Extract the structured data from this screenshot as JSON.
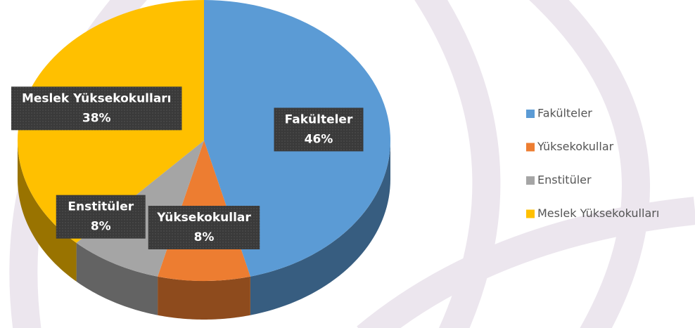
{
  "chart_data": {
    "type": "pie",
    "categories": [
      "Fakülteler",
      "Yüksekokullar",
      "Enstitüler",
      "Meslek Yüksekokulları"
    ],
    "values": [
      46,
      8,
      8,
      38
    ],
    "value_labels": [
      "46%",
      "8%",
      "8%",
      "38%"
    ],
    "colors": [
      "#5b9bd5",
      "#ed7d31",
      "#a5a5a5",
      "#ffc000"
    ],
    "legend": "right"
  }
}
